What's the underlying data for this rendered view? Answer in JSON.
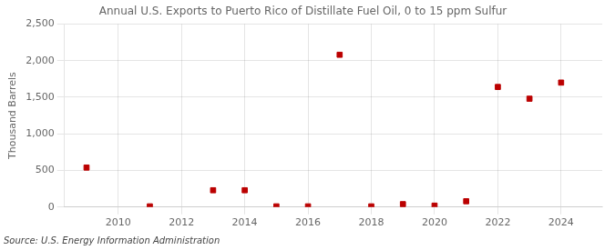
{
  "chart_data": {
    "type": "scatter",
    "title": "Annual U.S. Exports to Puerto Rico of Distillate Fuel Oil, 0 to 15 ppm Sulfur",
    "ylabel": "Thousand Barrels",
    "annotation": "Source: U.S. Energy Information Administration",
    "x": [
      2009,
      2011,
      2013,
      2014,
      2015,
      2016,
      2017,
      2018,
      2019,
      2020,
      2021,
      2022,
      2023,
      2024
    ],
    "values": [
      540,
      10,
      230,
      230,
      10,
      10,
      2080,
      10,
      40,
      20,
      80,
      1640,
      1480,
      1700
    ],
    "color": "#bb0000",
    "marker": "square",
    "xlim": [
      2008.3,
      2025.3
    ],
    "xticks": [
      2010,
      2012,
      2014,
      2016,
      2018,
      2020,
      2022,
      2024
    ],
    "ylim": [
      0,
      2500
    ],
    "yticks": [
      0,
      500,
      {
        "value": 1000,
        "label": "1,000"
      },
      {
        "value": 1500,
        "label": "1,500"
      },
      {
        "value": 2000,
        "label": "2,000"
      },
      {
        "value": 2500,
        "label": "2,500"
      }
    ],
    "grid": true
  }
}
